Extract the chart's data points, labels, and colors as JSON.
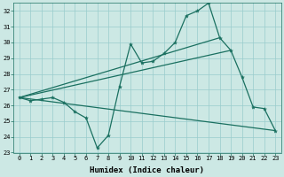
{
  "xlabel": "Humidex (Indice chaleur)",
  "ylabel": "",
  "bg_color": "#cce8e4",
  "line_color": "#1a7060",
  "grid_color": "#99cccc",
  "x_min": -0.5,
  "x_max": 23.5,
  "y_min": 23,
  "y_max": 32.5,
  "line1_x": [
    0,
    1,
    2,
    3,
    4,
    5,
    6,
    7,
    8,
    9,
    10,
    11,
    12,
    13,
    14,
    15,
    16,
    17,
    18,
    19,
    20,
    21,
    22,
    23
  ],
  "line1_y": [
    26.5,
    26.3,
    26.4,
    26.5,
    26.2,
    25.6,
    25.2,
    23.3,
    24.1,
    27.2,
    29.9,
    28.7,
    28.8,
    29.3,
    30.0,
    31.7,
    32.0,
    32.5,
    30.3,
    29.5,
    27.8,
    25.9,
    25.8,
    24.4
  ],
  "line2_x": [
    0,
    18
  ],
  "line2_y": [
    26.5,
    30.3
  ],
  "line3_x": [
    0,
    19
  ],
  "line3_y": [
    26.5,
    29.5
  ],
  "line4_x": [
    0,
    23
  ],
  "line4_y": [
    26.5,
    24.4
  ],
  "yticks": [
    23,
    24,
    25,
    26,
    27,
    28,
    29,
    30,
    31,
    32
  ],
  "xticks": [
    0,
    1,
    2,
    3,
    4,
    5,
    6,
    7,
    8,
    9,
    10,
    11,
    12,
    13,
    14,
    15,
    16,
    17,
    18,
    19,
    20,
    21,
    22,
    23
  ],
  "tick_fontsize": 5.0,
  "xlabel_fontsize": 6.5,
  "lw": 0.9
}
